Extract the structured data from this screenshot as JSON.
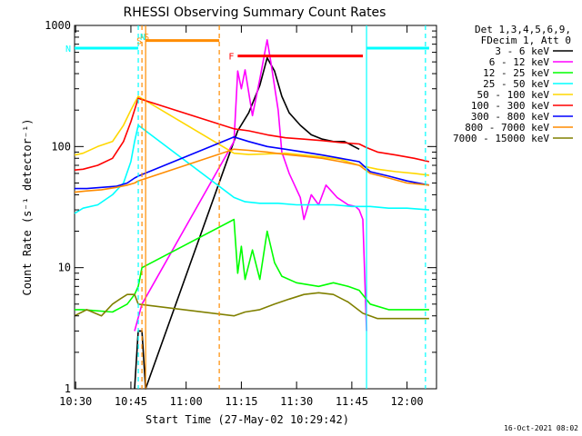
{
  "chart_data": {
    "type": "line",
    "title": "RHESSI Observing Summary Count Rates",
    "xlabel": "Start Time (27-May-02 10:29:42)",
    "ylabel": "Count Rate (s⁻¹ detector⁻¹)",
    "y_scale": "log",
    "xlim": [
      "10:29:42",
      "12:08:00"
    ],
    "ylim": [
      1,
      1000
    ],
    "x_ticks": [
      "10:30",
      "10:45",
      "11:00",
      "11:15",
      "11:30",
      "11:45",
      "12:00"
    ],
    "y_ticks": [
      "1",
      "10",
      "100",
      "1000"
    ],
    "grid": false,
    "legend_position": "right",
    "legend_header": [
      "Det 1,3,4,5,6,9,",
      "FDecim 1, Att 0"
    ],
    "timestamp": "16-Oct-2021 08:02",
    "series": [
      {
        "name": "3 - 6 keV",
        "color": "#000000",
        "points": [
          [
            "10:46",
            1
          ],
          [
            "10:47",
            3
          ],
          [
            "10:48",
            3
          ],
          [
            "10:49",
            1
          ],
          [
            "11:14",
            135
          ],
          [
            "11:17",
            190
          ],
          [
            "11:20",
            320
          ],
          [
            "11:22",
            540
          ],
          [
            "11:24",
            420
          ],
          [
            "11:26",
            260
          ],
          [
            "11:28",
            190
          ],
          [
            "11:31",
            150
          ],
          [
            "11:34",
            125
          ],
          [
            "11:37",
            115
          ],
          [
            "11:40",
            110
          ],
          [
            "11:43",
            110
          ],
          [
            "11:47",
            95
          ]
        ]
      },
      {
        "name": "6 - 12 keV",
        "color": "#ff00ff",
        "points": [
          [
            "10:46",
            3
          ],
          [
            "10:48",
            5
          ],
          [
            "11:13",
            110
          ],
          [
            "11:14",
            420
          ],
          [
            "11:15",
            300
          ],
          [
            "11:16",
            430
          ],
          [
            "11:18",
            180
          ],
          [
            "11:20",
            360
          ],
          [
            "11:22",
            760
          ],
          [
            "11:23",
            500
          ],
          [
            "11:25",
            200
          ],
          [
            "11:26",
            90
          ],
          [
            "11:28",
            60
          ],
          [
            "11:31",
            38
          ],
          [
            "11:32",
            25
          ],
          [
            "11:34",
            40
          ],
          [
            "11:36",
            33
          ],
          [
            "11:38",
            48
          ],
          [
            "11:41",
            38
          ],
          [
            "11:44",
            33
          ],
          [
            "11:46",
            32
          ],
          [
            "11:47",
            30
          ],
          [
            "11:48",
            25
          ],
          [
            "11:49",
            3
          ]
        ]
      },
      {
        "name": "12 - 25 keV",
        "color": "#00ff00",
        "points": [
          [
            "10:29:42",
            4.5
          ],
          [
            "10:32",
            4.5
          ],
          [
            "10:40",
            4.3
          ],
          [
            "10:44",
            5
          ],
          [
            "10:46",
            6
          ],
          [
            "10:47",
            7
          ],
          [
            "10:48",
            10
          ],
          [
            "11:13",
            25
          ],
          [
            "11:14",
            9
          ],
          [
            "11:15",
            15
          ],
          [
            "11:16",
            8
          ],
          [
            "11:18",
            14
          ],
          [
            "11:20",
            8
          ],
          [
            "11:22",
            20
          ],
          [
            "11:24",
            11
          ],
          [
            "11:26",
            8.5
          ],
          [
            "11:30",
            7.5
          ],
          [
            "11:36",
            7
          ],
          [
            "11:40",
            7.5
          ],
          [
            "11:44",
            7
          ],
          [
            "11:47",
            6.5
          ],
          [
            "11:50",
            5
          ],
          [
            "11:55",
            4.5
          ],
          [
            "12:00",
            4.5
          ],
          [
            "12:06",
            4.5
          ]
        ]
      },
      {
        "name": "25 - 50 keV",
        "color": "#00ffff",
        "points": [
          [
            "10:29:42",
            28
          ],
          [
            "10:32",
            31
          ],
          [
            "10:36",
            33
          ],
          [
            "10:40",
            40
          ],
          [
            "10:43",
            50
          ],
          [
            "10:45",
            75
          ],
          [
            "10:46",
            110
          ],
          [
            "10:47",
            150
          ],
          [
            "11:13",
            38
          ],
          [
            "11:16",
            35
          ],
          [
            "11:20",
            34
          ],
          [
            "11:25",
            34
          ],
          [
            "11:30",
            33
          ],
          [
            "11:35",
            33
          ],
          [
            "11:40",
            33
          ],
          [
            "11:45",
            32
          ],
          [
            "11:50",
            32
          ],
          [
            "11:55",
            31
          ],
          [
            "12:00",
            31
          ],
          [
            "12:06",
            30
          ]
        ]
      },
      {
        "name": "50 - 100 keV",
        "color": "#ffd700",
        "points": [
          [
            "10:29:42",
            85
          ],
          [
            "10:32",
            88
          ],
          [
            "10:36",
            100
          ],
          [
            "10:40",
            110
          ],
          [
            "10:43",
            150
          ],
          [
            "10:45",
            200
          ],
          [
            "10:47",
            260
          ],
          [
            "11:13",
            88
          ],
          [
            "11:17",
            86
          ],
          [
            "11:22",
            87
          ],
          [
            "11:27",
            88
          ],
          [
            "11:32",
            85
          ],
          [
            "11:37",
            82
          ],
          [
            "11:42",
            78
          ],
          [
            "11:47",
            70
          ],
          [
            "11:52",
            65
          ],
          [
            "11:57",
            62
          ],
          [
            "12:02",
            60
          ],
          [
            "12:06",
            58
          ]
        ]
      },
      {
        "name": "100 - 300 keV",
        "color": "#ff0000",
        "points": [
          [
            "10:29:42",
            64
          ],
          [
            "10:32",
            65
          ],
          [
            "10:36",
            70
          ],
          [
            "10:40",
            80
          ],
          [
            "10:43",
            110
          ],
          [
            "10:45",
            160
          ],
          [
            "10:47",
            250
          ],
          [
            "11:13",
            140
          ],
          [
            "11:17",
            135
          ],
          [
            "11:22",
            125
          ],
          [
            "11:27",
            118
          ],
          [
            "11:32",
            115
          ],
          [
            "11:37",
            112
          ],
          [
            "11:42",
            108
          ],
          [
            "11:47",
            105
          ],
          [
            "11:49",
            98
          ],
          [
            "11:52",
            90
          ],
          [
            "11:57",
            85
          ],
          [
            "12:02",
            80
          ],
          [
            "12:06",
            75
          ]
        ]
      },
      {
        "name": "300 - 800 keV",
        "color": "#0000ff",
        "points": [
          [
            "10:29:42",
            45
          ],
          [
            "10:33",
            45
          ],
          [
            "10:37",
            46
          ],
          [
            "10:41",
            47
          ],
          [
            "10:44",
            50
          ],
          [
            "10:46",
            55
          ],
          [
            "10:47",
            57
          ],
          [
            "11:13",
            120
          ],
          [
            "11:17",
            110
          ],
          [
            "11:22",
            100
          ],
          [
            "11:27",
            95
          ],
          [
            "11:32",
            90
          ],
          [
            "11:37",
            85
          ],
          [
            "11:42",
            80
          ],
          [
            "11:47",
            75
          ],
          [
            "11:50",
            62
          ],
          [
            "11:55",
            57
          ],
          [
            "12:00",
            52
          ],
          [
            "12:06",
            48
          ]
        ]
      },
      {
        "name": "800 - 7000 keV",
        "color": "#ff8c00",
        "points": [
          [
            "10:29:42",
            42
          ],
          [
            "10:33",
            43
          ],
          [
            "10:37",
            44
          ],
          [
            "10:41",
            46
          ],
          [
            "10:44",
            48
          ],
          [
            "10:46",
            50
          ],
          [
            "10:47",
            52
          ],
          [
            "11:13",
            95
          ],
          [
            "11:17",
            93
          ],
          [
            "11:22",
            90
          ],
          [
            "11:27",
            86
          ],
          [
            "11:32",
            83
          ],
          [
            "11:37",
            80
          ],
          [
            "11:42",
            75
          ],
          [
            "11:47",
            70
          ],
          [
            "11:50",
            60
          ],
          [
            "11:55",
            55
          ],
          [
            "12:00",
            50
          ],
          [
            "12:06",
            48
          ]
        ]
      },
      {
        "name": "7000 - 15000 keV",
        "color": "#808000",
        "points": [
          [
            "10:29:42",
            4
          ],
          [
            "10:33",
            4.5
          ],
          [
            "10:37",
            4
          ],
          [
            "10:40",
            5
          ],
          [
            "10:42",
            5.5
          ],
          [
            "10:44",
            6
          ],
          [
            "10:46",
            6
          ],
          [
            "10:47",
            5
          ],
          [
            "11:13",
            4
          ],
          [
            "11:16",
            4.3
          ],
          [
            "11:20",
            4.5
          ],
          [
            "11:24",
            5
          ],
          [
            "11:28",
            5.5
          ],
          [
            "11:32",
            6
          ],
          [
            "11:36",
            6.2
          ],
          [
            "11:40",
            6
          ],
          [
            "11:44",
            5.2
          ],
          [
            "11:48",
            4.2
          ],
          [
            "11:52",
            3.8
          ],
          [
            "11:56",
            3.8
          ],
          [
            "12:00",
            3.8
          ],
          [
            "12:06",
            3.8
          ]
        ]
      }
    ],
    "flag_bars": [
      {
        "label": "S",
        "color": "#ff8c00",
        "start": "10:49",
        "end": "11:09",
        "level": 750
      },
      {
        "label": "F",
        "color": "#ff0000",
        "start": "11:14",
        "end": "11:48",
        "level": 560
      },
      {
        "label": "N",
        "color": "#00ffff",
        "start": "10:29:42",
        "end": "10:47",
        "level": 650
      },
      {
        "label": "",
        "color": "#00ffff",
        "start": "11:49",
        "end": "12:06",
        "level": 650
      }
    ],
    "markers": [
      {
        "label": "S",
        "color": "#ff8c00",
        "at": "10:48",
        "style": "dashed"
      },
      {
        "label": "N",
        "color": "#00ffff",
        "at": "10:47",
        "style": "dashed"
      },
      {
        "label": "",
        "color": "#ff8c00",
        "at": "10:49",
        "style": "solid"
      },
      {
        "label": "",
        "color": "#ff8c00",
        "at": "11:09",
        "style": "dashed"
      },
      {
        "label": "",
        "color": "#00ffff",
        "at": "11:49",
        "style": "solid"
      },
      {
        "label": "",
        "color": "#00ffff",
        "at": "12:05",
        "style": "dashed"
      }
    ]
  }
}
